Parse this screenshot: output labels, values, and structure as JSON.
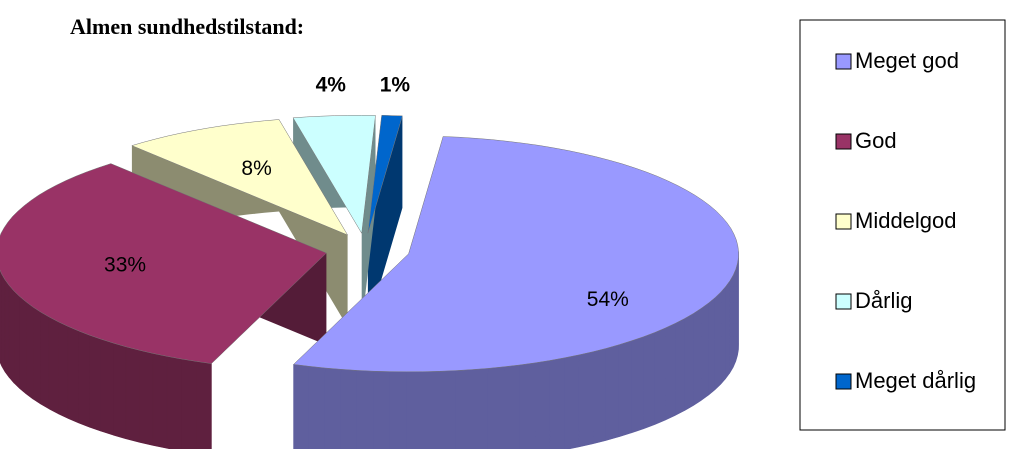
{
  "chart_data": {
    "type": "pie",
    "title": "Almen sundhedstilstand:",
    "categories": [
      "Meget god",
      "God",
      "Middelgod",
      "Dårlig",
      "Meget dårlig"
    ],
    "values": [
      54,
      33,
      8,
      4,
      1
    ],
    "value_labels": [
      "54%",
      "33%",
      "8%",
      "4%",
      "1%"
    ],
    "colors": [
      "#9999ff",
      "#993366",
      "#ffffcc",
      "#ccffff",
      "#0066cc"
    ],
    "legend": "right"
  }
}
